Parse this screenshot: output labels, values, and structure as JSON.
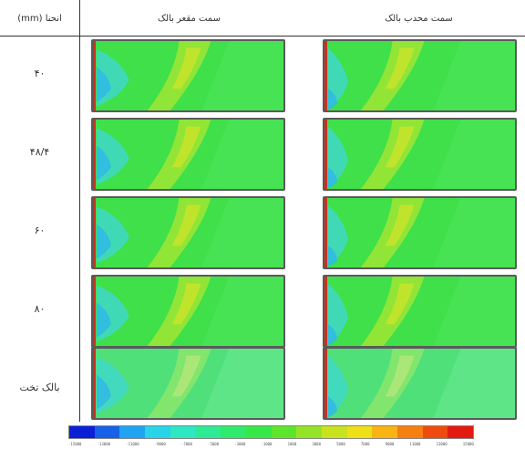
{
  "header": {
    "column_label": "انحنا (mm)",
    "left_side": "سمت مقعر بالک",
    "right_side": "سمت محدب بالک"
  },
  "rows": [
    {
      "label": "۴۰"
    },
    {
      "label": "۴۸/۴"
    },
    {
      "label": "۶۰"
    },
    {
      "label": "۸۰"
    },
    {
      "label": "بالک تخت"
    }
  ],
  "legend": {
    "ticks": [
      "-15000",
      "-13000",
      "-11000",
      "-9000",
      "-7000",
      "-5000",
      "-3000",
      "-1000",
      "1000",
      "3000",
      "5000",
      "7000",
      "9000",
      "11000",
      "13000",
      "15000"
    ],
    "colors": [
      "#0a1fd6",
      "#1760e8",
      "#1fa4f2",
      "#29d3e8",
      "#2de8c2",
      "#2fea95",
      "#2fea6c",
      "#36e845",
      "#5de52c",
      "#95e326",
      "#c8e21e",
      "#eedf16",
      "#f8b412",
      "#f67f0f",
      "#f04b0e",
      "#e31a10"
    ]
  }
}
